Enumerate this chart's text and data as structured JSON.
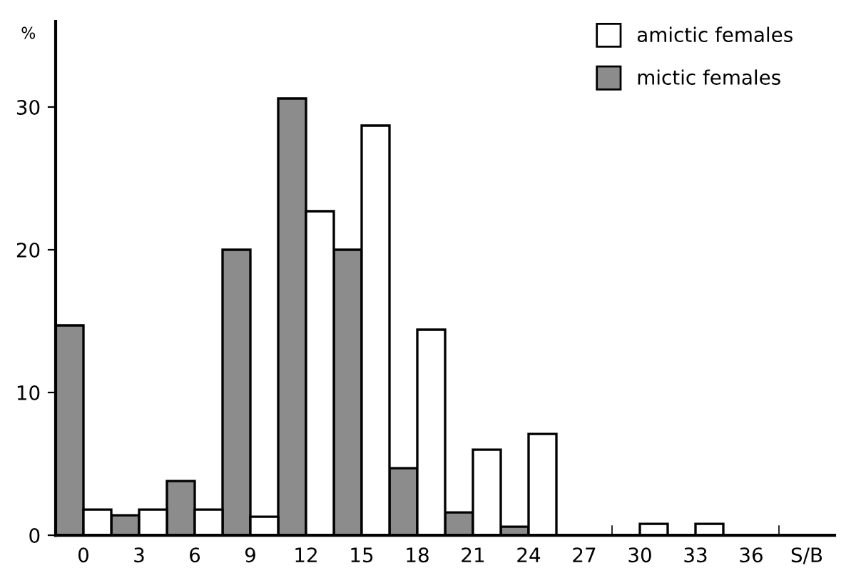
{
  "chart_data": {
    "type": "bar",
    "ylabel": "%",
    "categories": [
      "0",
      "3",
      "6",
      "9",
      "12",
      "15",
      "18",
      "21",
      "24",
      "27",
      "30",
      "33",
      "36",
      "S/B"
    ],
    "series": [
      {
        "name": "mictic females",
        "color": "#8c8c8c",
        "values": [
          14.7,
          1.4,
          3.8,
          20.0,
          30.6,
          20.0,
          4.7,
          1.6,
          0.6,
          0,
          0,
          0,
          0,
          0
        ]
      },
      {
        "name": "amictic females",
        "color": "#ffffff",
        "values": [
          1.8,
          1.8,
          1.8,
          1.3,
          22.7,
          28.7,
          14.4,
          6.0,
          7.1,
          0,
          0.8,
          0.8,
          0,
          0
        ]
      }
    ],
    "ylim": [
      0,
      36
    ],
    "yticks": [
      0,
      10,
      20,
      30
    ],
    "grid": false,
    "legend": "top right"
  }
}
